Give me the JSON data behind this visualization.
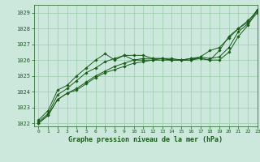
{
  "title": "Graphe pression niveau de la mer (hPa)",
  "bg_color": "#cce8dd",
  "grid_color": "#99ccaa",
  "line_color": "#1a5c1a",
  "xlim": [
    -0.5,
    23
  ],
  "ylim": [
    1021.8,
    1029.5
  ],
  "yticks": [
    1022,
    1023,
    1024,
    1025,
    1026,
    1027,
    1028,
    1029
  ],
  "xticks": [
    0,
    1,
    2,
    3,
    4,
    5,
    6,
    7,
    8,
    9,
    10,
    11,
    12,
    13,
    14,
    15,
    16,
    17,
    18,
    19,
    20,
    21,
    22,
    23
  ],
  "series": [
    [
      1022.0,
      1022.5,
      1023.5,
      1023.9,
      1024.1,
      1024.5,
      1024.9,
      1025.2,
      1025.4,
      1025.6,
      1025.8,
      1025.9,
      1026.0,
      1026.0,
      1026.0,
      1026.0,
      1026.0,
      1026.1,
      1026.0,
      1026.0,
      1026.5,
      1027.5,
      1028.2,
      1029.2
    ],
    [
      1022.0,
      1022.5,
      1023.5,
      1023.9,
      1024.2,
      1024.6,
      1025.0,
      1025.3,
      1025.6,
      1025.8,
      1026.0,
      1026.0,
      1026.0,
      1026.1,
      1026.0,
      1026.0,
      1026.0,
      1026.2,
      1026.1,
      1026.2,
      1026.8,
      1027.8,
      1028.3,
      1029.0
    ],
    [
      1022.1,
      1022.6,
      1023.8,
      1024.2,
      1024.7,
      1025.2,
      1025.5,
      1025.9,
      1026.1,
      1026.3,
      1026.3,
      1026.3,
      1026.1,
      1026.1,
      1026.1,
      1026.0,
      1026.1,
      1026.1,
      1026.0,
      1026.6,
      1027.5,
      1028.0,
      1028.5,
      1029.1
    ],
    [
      1022.2,
      1022.8,
      1024.1,
      1024.4,
      1025.0,
      1025.5,
      1026.0,
      1026.4,
      1026.0,
      1026.3,
      1026.0,
      1026.1,
      1026.1,
      1026.1,
      1026.0,
      1026.0,
      1026.1,
      1026.2,
      1026.6,
      1026.8,
      1027.4,
      1028.0,
      1028.4,
      1029.2
    ]
  ]
}
